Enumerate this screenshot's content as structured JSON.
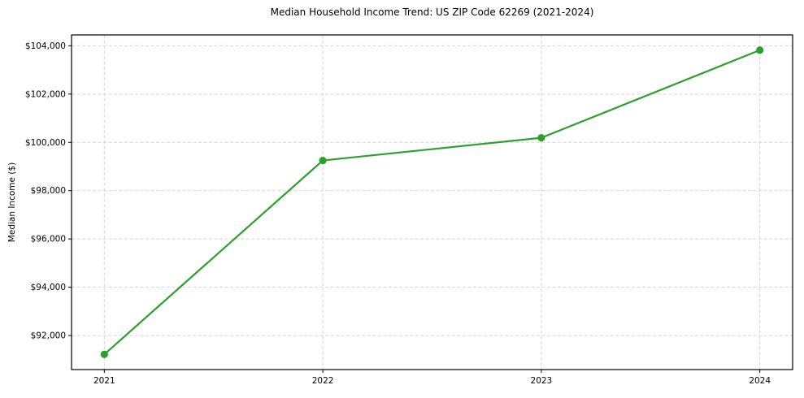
{
  "chart_data": {
    "type": "line",
    "title": "Median Household Income Trend: US ZIP Code 62269 (2021-2024)",
    "xlabel": "",
    "ylabel": "Median Income ($)",
    "x": [
      2021,
      2022,
      2023,
      2024
    ],
    "series": [
      {
        "name": "Median Household Income",
        "values": [
          91220,
          99250,
          100190,
          103820
        ]
      }
    ],
    "xticks": [
      2021,
      2022,
      2023,
      2024
    ],
    "xtick_labels": [
      "2021",
      "2022",
      "2023",
      "2024"
    ],
    "yticks": [
      92000,
      94000,
      96000,
      98000,
      100000,
      102000,
      104000
    ],
    "ytick_labels": [
      "$92,000",
      "$94,000",
      "$96,000",
      "$98,000",
      "$100,000",
      "$102,000",
      "$104,000"
    ],
    "xlim": [
      2020.85,
      2024.15
    ],
    "ylim": [
      90590,
      104450
    ],
    "grid": true,
    "grid_style": "dashed",
    "grid_color": "#d5d5d5",
    "line_color": "#2ca02c",
    "marker": "circle",
    "spine_color": "#000000",
    "legend": false
  }
}
